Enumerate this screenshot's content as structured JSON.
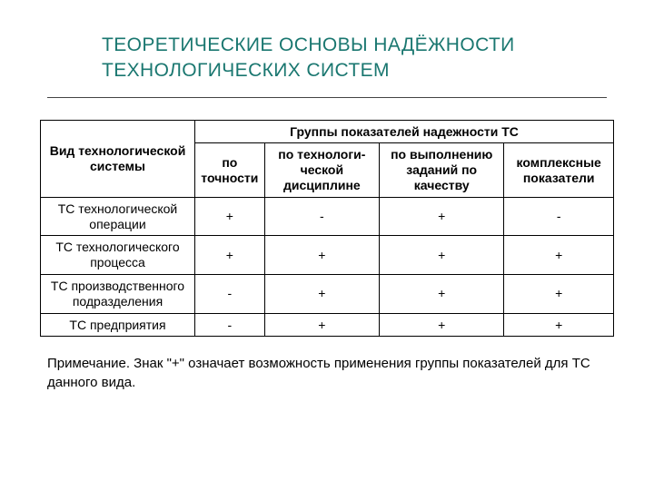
{
  "title_line1": "ТЕОРЕТИЧЕСКИЕ ОСНОВЫ НАДЁЖНОСТИ",
  "title_line2": "ТЕХНОЛОГИЧЕСКИХ СИСТЕМ",
  "table": {
    "header": {
      "col0": "Вид технологической системы",
      "group": "Группы показателей надежности ТС",
      "sub": [
        "по точности",
        "по технологи-ческой дисциплине",
        "по выполнению заданий по качеству",
        "комплексные показатели"
      ]
    },
    "rows": [
      {
        "name": "ТС технологической операции",
        "v": [
          "+",
          "-",
          "+",
          "-"
        ]
      },
      {
        "name": "ТС технологического процесса",
        "v": [
          "+",
          "+",
          "+",
          "+"
        ]
      },
      {
        "name": "ТС производственного подразделения",
        "v": [
          "-",
          "+",
          "+",
          "+"
        ]
      },
      {
        "name": "ТС предприятия",
        "v": [
          "-",
          "+",
          "+",
          "+"
        ]
      }
    ]
  },
  "note": "Примечание. Знак \"+\" означает возможность применения группы показателей для ТС данного вида.",
  "colors": {
    "title": "#1a7770",
    "text": "#000000",
    "border": "#000000",
    "bg": "#ffffff"
  }
}
